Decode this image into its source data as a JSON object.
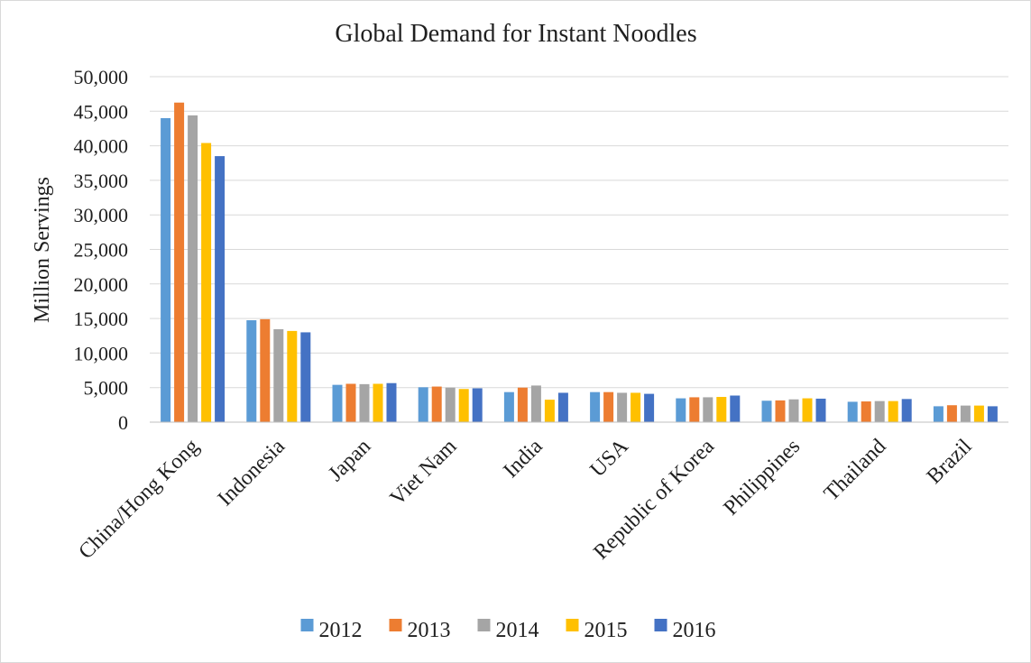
{
  "chart_data": {
    "type": "bar",
    "title": "Global Demand for Instant Noodles",
    "xlabel": "",
    "ylabel": "Million Servings",
    "ylim": [
      0,
      50000
    ],
    "yticks": [
      "0",
      "5,000",
      "10,000",
      "15,000",
      "20,000",
      "25,000",
      "30,000",
      "35,000",
      "40,000",
      "45,000",
      "50,000"
    ],
    "grid": true,
    "legend_position": "bottom",
    "categories": [
      "China/Hong Kong",
      "Indonesia",
      "Japan",
      "Viet Nam",
      "India",
      "USA",
      "Republic of Korea",
      "Philippines",
      "Thailand",
      "Brazil"
    ],
    "series": [
      {
        "name": "2012",
        "color": "#5b9bd5",
        "values": [
          44000,
          14750,
          5400,
          5050,
          4350,
          4350,
          3450,
          3100,
          2950,
          2300
        ]
      },
      {
        "name": "2013",
        "color": "#ed7d31",
        "values": [
          46250,
          14900,
          5550,
          5150,
          5000,
          4350,
          3600,
          3150,
          3000,
          2450
        ]
      },
      {
        "name": "2014",
        "color": "#a5a5a5",
        "values": [
          44400,
          13450,
          5500,
          5000,
          5300,
          4250,
          3600,
          3300,
          3050,
          2400
        ]
      },
      {
        "name": "2015",
        "color": "#ffc000",
        "values": [
          40400,
          13200,
          5550,
          4800,
          3250,
          4250,
          3650,
          3450,
          3050,
          2400
        ]
      },
      {
        "name": "2016",
        "color": "#4472c4",
        "values": [
          38500,
          13000,
          5650,
          4900,
          4250,
          4100,
          3850,
          3400,
          3350,
          2300
        ]
      }
    ]
  }
}
